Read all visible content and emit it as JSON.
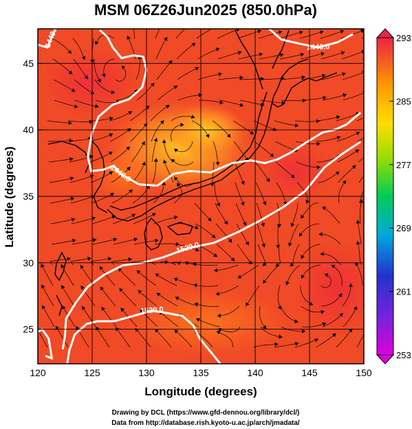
{
  "title": "MSM 06Z26Jun2025 (850.0hPa)",
  "chart_data": {
    "type": "heatmap",
    "title": "MSM 06Z26Jun2025 (850.0hPa)",
    "xlabel": "Longitude (degrees)",
    "ylabel": "Latitude  (degrees)",
    "xlim": [
      120,
      150
    ],
    "ylim": [
      22.4,
      47.6
    ],
    "xticks": [
      120,
      125,
      130,
      135,
      140,
      145,
      150
    ],
    "yticks": [
      25,
      30,
      35,
      40,
      45
    ],
    "grid": true,
    "colorbar": {
      "min": 253,
      "max": 293,
      "ticks": [
        253,
        261,
        269,
        277,
        285,
        293
      ],
      "colors": [
        "#dd00dd",
        "#2222cc",
        "#00cccc",
        "#00cc44",
        "#aadd00",
        "#ffdd00",
        "#ff9900",
        "#ff4422",
        "#ee2244"
      ],
      "placement": "right"
    },
    "contours": [
      {
        "label": "1440.0",
        "points": [
          [
            125.7,
            47.5
          ],
          [
            126.4,
            47.0
          ],
          [
            126.9,
            46.2
          ],
          [
            127.7,
            45.4
          ],
          [
            128.8,
            45.6
          ],
          [
            129.7,
            45.5
          ],
          [
            130.0,
            44.5
          ],
          [
            129.6,
            43.2
          ],
          [
            128.4,
            42.3
          ],
          [
            126.9,
            41.9
          ],
          [
            125.6,
            41.0
          ],
          [
            125.0,
            39.8
          ],
          [
            124.6,
            38.0
          ],
          [
            124.9,
            36.9
          ],
          [
            126.0,
            37.0
          ],
          [
            127.0,
            37.3
          ],
          [
            127.6,
            36.7
          ],
          [
            129.3,
            35.9
          ],
          [
            131.0,
            35.8
          ],
          [
            132.5,
            36.7
          ],
          [
            134.0,
            36.9
          ],
          [
            135.9,
            36.8
          ],
          [
            137.9,
            37.5
          ],
          [
            139.6,
            37.7
          ],
          [
            140.9,
            37.5
          ],
          [
            142.1,
            37.8
          ],
          [
            143.3,
            38.3
          ],
          [
            144.6,
            39.0
          ],
          [
            146.2,
            39.8
          ],
          [
            147.3,
            40.0
          ],
          [
            148.4,
            40.4
          ],
          [
            149.7,
            41.3
          ]
        ]
      },
      {
        "label": "1440.0",
        "points": [
          [
            141.3,
            47.6
          ],
          [
            142.4,
            46.8
          ],
          [
            144.0,
            46.5
          ],
          [
            145.8,
            46.2
          ],
          [
            147.6,
            46.6
          ],
          [
            149.0,
            47.2
          ]
        ]
      },
      {
        "label": "1440.0",
        "points": [
          [
            120.0,
            46.4
          ],
          [
            120.9,
            46.2
          ],
          [
            121.3,
            47.0
          ],
          [
            121.6,
            47.6
          ]
        ]
      },
      {
        "label": "1520.0",
        "points": [
          [
            122.7,
            22.4
          ],
          [
            122.9,
            23.4
          ],
          [
            123.4,
            24.6
          ],
          [
            124.5,
            25.4
          ],
          [
            125.5,
            25.6
          ],
          [
            127.0,
            25.6
          ],
          [
            128.8,
            26.0
          ],
          [
            130.5,
            26.4
          ],
          [
            132.0,
            26.2
          ],
          [
            133.3,
            26.0
          ],
          [
            134.3,
            25.3
          ],
          [
            134.9,
            24.3
          ],
          [
            135.9,
            23.3
          ],
          [
            136.8,
            22.4
          ]
        ]
      },
      {
        "label": "1520.0",
        "points": [
          [
            122.3,
            23.5
          ],
          [
            122.5,
            24.5
          ],
          [
            122.6,
            25.8
          ],
          [
            123.5,
            27.0
          ],
          [
            124.6,
            28.2
          ],
          [
            126.1,
            29.1
          ],
          [
            127.8,
            29.8
          ],
          [
            129.6,
            30.0
          ],
          [
            131.5,
            30.4
          ],
          [
            133.8,
            31.1
          ],
          [
            136.2,
            31.5
          ],
          [
            138.4,
            32.3
          ],
          [
            140.5,
            33.2
          ],
          [
            142.6,
            34.2
          ],
          [
            144.6,
            35.4
          ],
          [
            146.4,
            37.2
          ],
          [
            148.2,
            38.3
          ],
          [
            149.7,
            39.1
          ]
        ]
      },
      {
        "label": "",
        "points": [
          [
            120.7,
            23.0
          ],
          [
            121.3,
            22.8
          ],
          [
            121.0,
            24.3
          ],
          [
            120.4,
            25.0
          ],
          [
            120.0,
            24.8
          ]
        ]
      }
    ],
    "features": [
      {
        "type": "cyclonic-circulation",
        "center": [
          127.6,
          43.8
        ]
      },
      {
        "type": "anticyclonic-circulation",
        "center": [
          133.0,
          39.8
        ]
      },
      {
        "type": "cyclonic-circulation",
        "center": [
          146.5,
          28.6
        ]
      }
    ]
  },
  "credits": {
    "line1": "Drawing by DCL (https://www.gfd-dennou.org/library/dcl/)",
    "line2": "Data from http://database.rish.kyoto-u.ac.jp/arch/jmadata/"
  }
}
